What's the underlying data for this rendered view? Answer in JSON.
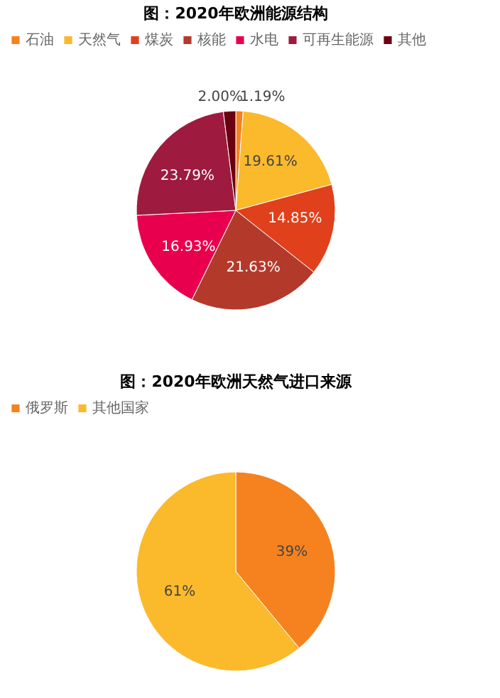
{
  "chart_data": [
    {
      "type": "pie",
      "title": "图：2020年欧洲能源结构",
      "legend": "top",
      "categories": [
        "石油",
        "天然气",
        "煤炭",
        "核能",
        "水电",
        "可再生能源",
        "其他"
      ],
      "values": [
        1.19,
        19.61,
        14.85,
        21.63,
        16.93,
        23.79,
        2.0
      ],
      "value_labels": [
        "1.19%",
        "19.61%",
        "14.85%",
        "21.63%",
        "16.93%",
        "23.79%",
        "2.00%"
      ],
      "colors": [
        "#f5821f",
        "#fbb92c",
        "#e0401c",
        "#b33a2b",
        "#e8004e",
        "#9e1b3f",
        "#6b0010"
      ]
    },
    {
      "type": "pie",
      "title": "图：2020年欧洲天然气进口来源",
      "legend": "top",
      "categories": [
        "俄罗斯",
        "其他国家"
      ],
      "values": [
        39,
        61
      ],
      "value_labels": [
        "39%",
        "61%"
      ],
      "colors": [
        "#f5821f",
        "#fbb92c"
      ]
    }
  ]
}
